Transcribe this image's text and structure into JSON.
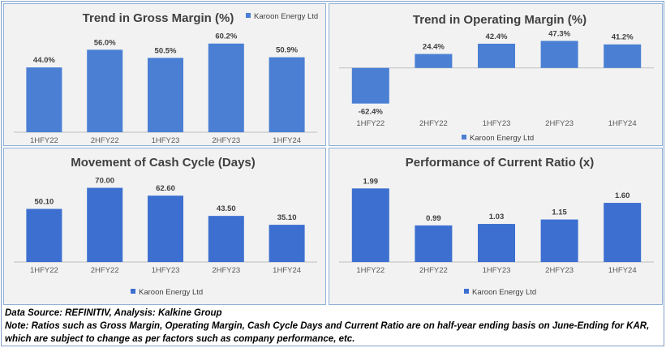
{
  "chart_data": [
    {
      "type": "bar",
      "title": "Trend in Gross Margin (%)",
      "categories": [
        "1HFY22",
        "2HFY22",
        "1HFY23",
        "2HFY23",
        "1HFY24"
      ],
      "series": [
        {
          "name": "Karoon Energy Ltd",
          "values": [
            44.0,
            56.0,
            50.5,
            60.2,
            50.9
          ]
        }
      ],
      "data_labels": [
        "44.0%",
        "56.0%",
        "50.5%",
        "60.2%",
        "50.9%"
      ],
      "ylim": [
        0,
        65
      ],
      "legend": "top-right",
      "grid": false,
      "color": "#4a7fd4"
    },
    {
      "type": "bar",
      "title": "Trend in Operating Margin (%)",
      "categories": [
        "1HFY22",
        "2HFY22",
        "1HFY23",
        "2HFY23",
        "1HFY24"
      ],
      "series": [
        {
          "name": "Karoon Energy Ltd",
          "values": [
            -62.4,
            24.4,
            42.4,
            47.3,
            41.2
          ]
        }
      ],
      "data_labels": [
        "-62.4%",
        "24.4%",
        "42.4%",
        "47.3%",
        "41.2%"
      ],
      "ylim": [
        -70,
        55
      ],
      "legend": "bottom",
      "grid": false,
      "color": "#4a7fd4"
    },
    {
      "type": "bar",
      "title": "Movement of Cash Cycle (Days)",
      "categories": [
        "1HFY22",
        "2HFY22",
        "1HFY23",
        "2HFY23",
        "1HFY24"
      ],
      "series": [
        {
          "name": "Karoon Energy Ltd",
          "values": [
            50.1,
            70.0,
            62.6,
            43.5,
            35.1
          ]
        }
      ],
      "data_labels": [
        "50.10",
        "70.00",
        "62.60",
        "43.50",
        "35.10"
      ],
      "ylim": [
        0,
        75
      ],
      "legend": "bottom",
      "grid": false,
      "color": "#3c6fd0"
    },
    {
      "type": "bar",
      "title": "Performance of Current Ratio (x)",
      "categories": [
        "1HFY22",
        "2HFY22",
        "1HFY23",
        "2HFY23",
        "1HFY24"
      ],
      "series": [
        {
          "name": "Karoon Energy Ltd",
          "values": [
            1.99,
            0.99,
            1.03,
            1.15,
            1.6
          ]
        }
      ],
      "data_labels": [
        "1.99",
        "0.99",
        "1.03",
        "1.15",
        "1.60"
      ],
      "ylim": [
        0,
        2.15
      ],
      "legend": "bottom",
      "grid": false,
      "color": "#3c6fd0"
    }
  ],
  "notes": {
    "source": "Data Source: REFINITIV, Analysis: Kalkine Group",
    "note": "Note: Ratios such as Gross Margin, Operating Margin, Cash Cycle Days and Current Ratio are on half-year ending basis on June-Ending for KAR, which are subject to change as per factors such as company performance, etc."
  }
}
